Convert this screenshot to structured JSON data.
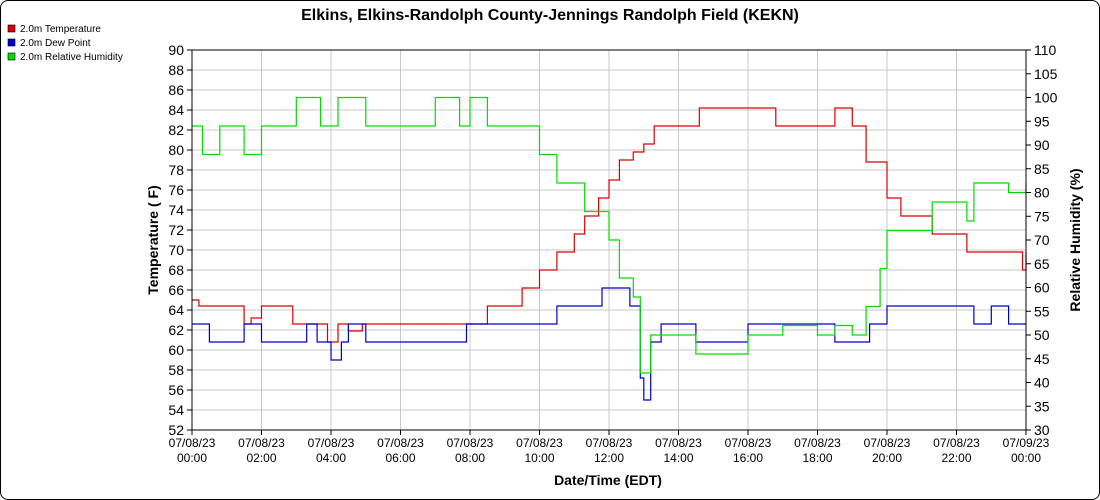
{
  "chart_data": {
    "type": "line",
    "title": "Elkins, Elkins-Randolph County-Jennings Randolph Field (KEKN)",
    "xlabel": "Date/Time (EDT)",
    "ylabel": "Temperature ( F)",
    "y2label": "Relative Humidity (%)",
    "ylim": [
      52,
      90
    ],
    "y2lim": [
      30,
      110
    ],
    "xlim": [
      0,
      24
    ],
    "grid": true,
    "legend_position": "top-left",
    "yticks": [
      "52",
      "54",
      "56",
      "58",
      "60",
      "62",
      "64",
      "66",
      "68",
      "70",
      "72",
      "74",
      "76",
      "78",
      "80",
      "82",
      "84",
      "86",
      "88",
      "90"
    ],
    "y2ticks": [
      "30",
      "35",
      "40",
      "45",
      "50",
      "55",
      "60",
      "65",
      "70",
      "75",
      "80",
      "85",
      "90",
      "95",
      "100",
      "105",
      "110"
    ],
    "xticks": [
      {
        "date": "07/08/23",
        "time": "00:00"
      },
      {
        "date": "07/08/23",
        "time": "02:00"
      },
      {
        "date": "07/08/23",
        "time": "04:00"
      },
      {
        "date": "07/08/23",
        "time": "06:00"
      },
      {
        "date": "07/08/23",
        "time": "08:00"
      },
      {
        "date": "07/08/23",
        "time": "10:00"
      },
      {
        "date": "07/08/23",
        "time": "12:00"
      },
      {
        "date": "07/08/23",
        "time": "14:00"
      },
      {
        "date": "07/08/23",
        "time": "16:00"
      },
      {
        "date": "07/08/23",
        "time": "18:00"
      },
      {
        "date": "07/08/23",
        "time": "20:00"
      },
      {
        "date": "07/08/23",
        "time": "22:00"
      },
      {
        "date": "07/09/23",
        "time": "00:00"
      }
    ],
    "series": [
      {
        "name": "2.0m Temperature",
        "color": "#dd0000",
        "axis": "left",
        "points": [
          [
            0,
            65.0
          ],
          [
            0.2,
            64.4
          ],
          [
            1.3,
            64.4
          ],
          [
            1.5,
            62.6
          ],
          [
            1.7,
            63.2
          ],
          [
            2.0,
            64.4
          ],
          [
            2.7,
            64.4
          ],
          [
            2.9,
            62.6
          ],
          [
            3.5,
            62.6
          ],
          [
            3.9,
            60.8
          ],
          [
            4.2,
            62.6
          ],
          [
            4.5,
            61.9
          ],
          [
            4.9,
            62.6
          ],
          [
            6.0,
            62.6
          ],
          [
            7.0,
            62.6
          ],
          [
            8.0,
            62.6
          ],
          [
            8.5,
            64.4
          ],
          [
            9.5,
            66.2
          ],
          [
            10.0,
            68.0
          ],
          [
            10.5,
            69.8
          ],
          [
            11.0,
            71.6
          ],
          [
            11.3,
            73.4
          ],
          [
            11.7,
            75.2
          ],
          [
            12.0,
            77.0
          ],
          [
            12.3,
            79.0
          ],
          [
            12.7,
            79.8
          ],
          [
            13.0,
            80.6
          ],
          [
            13.3,
            82.4
          ],
          [
            14.0,
            82.4
          ],
          [
            14.6,
            84.2
          ],
          [
            15.5,
            84.2
          ],
          [
            16.0,
            84.2
          ],
          [
            16.8,
            82.4
          ],
          [
            17.5,
            82.4
          ],
          [
            18.5,
            84.2
          ],
          [
            19.0,
            82.4
          ],
          [
            19.4,
            78.8
          ],
          [
            20.0,
            75.2
          ],
          [
            20.4,
            73.4
          ],
          [
            21.0,
            73.4
          ],
          [
            21.3,
            71.6
          ],
          [
            22.0,
            71.6
          ],
          [
            22.3,
            69.8
          ],
          [
            23.5,
            69.8
          ],
          [
            23.9,
            68.0
          ],
          [
            24.0,
            69.8
          ]
        ]
      },
      {
        "name": "2.0m Dew Point",
        "color": "#0000cc",
        "axis": "left",
        "points": [
          [
            0,
            62.6
          ],
          [
            0.5,
            60.8
          ],
          [
            1.3,
            60.8
          ],
          [
            1.5,
            62.6
          ],
          [
            2.0,
            60.8
          ],
          [
            3.0,
            60.8
          ],
          [
            3.3,
            62.6
          ],
          [
            3.6,
            60.8
          ],
          [
            4.0,
            59.0
          ],
          [
            4.3,
            60.8
          ],
          [
            4.5,
            62.6
          ],
          [
            5.0,
            60.8
          ],
          [
            6.0,
            60.8
          ],
          [
            7.5,
            60.8
          ],
          [
            7.9,
            62.6
          ],
          [
            10.0,
            62.6
          ],
          [
            10.5,
            64.4
          ],
          [
            11.5,
            64.4
          ],
          [
            11.8,
            66.2
          ],
          [
            12.3,
            66.2
          ],
          [
            12.6,
            64.4
          ],
          [
            12.9,
            57.2
          ],
          [
            13.0,
            55.0
          ],
          [
            13.2,
            60.8
          ],
          [
            13.5,
            62.6
          ],
          [
            14.0,
            62.6
          ],
          [
            14.5,
            60.8
          ],
          [
            15.5,
            60.8
          ],
          [
            16.0,
            62.6
          ],
          [
            18.0,
            62.6
          ],
          [
            18.5,
            60.8
          ],
          [
            19.5,
            62.6
          ],
          [
            20.0,
            64.4
          ],
          [
            22.0,
            64.4
          ],
          [
            22.5,
            62.6
          ],
          [
            23.0,
            64.4
          ],
          [
            23.5,
            62.6
          ],
          [
            24.0,
            62.6
          ]
        ]
      },
      {
        "name": "2.0m Relative Humidity",
        "color": "#00dd00",
        "axis": "right",
        "points": [
          [
            0,
            94
          ],
          [
            0.3,
            88
          ],
          [
            0.8,
            94
          ],
          [
            1.5,
            88
          ],
          [
            2.0,
            94
          ],
          [
            2.5,
            94
          ],
          [
            3.0,
            100
          ],
          [
            3.7,
            94
          ],
          [
            4.2,
            100
          ],
          [
            5.0,
            94
          ],
          [
            6.5,
            94
          ],
          [
            7.0,
            100
          ],
          [
            7.7,
            94
          ],
          [
            8.0,
            100
          ],
          [
            8.5,
            94
          ],
          [
            9.5,
            94
          ],
          [
            10.0,
            88
          ],
          [
            10.5,
            82
          ],
          [
            11.0,
            82
          ],
          [
            11.3,
            76
          ],
          [
            11.8,
            76
          ],
          [
            12.0,
            70
          ],
          [
            12.3,
            62
          ],
          [
            12.7,
            58
          ],
          [
            12.9,
            42
          ],
          [
            13.2,
            50
          ],
          [
            14.0,
            50
          ],
          [
            14.5,
            46
          ],
          [
            15.5,
            46
          ],
          [
            16.0,
            50
          ],
          [
            17.0,
            52
          ],
          [
            18.0,
            50
          ],
          [
            18.5,
            52
          ],
          [
            19.0,
            50
          ],
          [
            19.4,
            56
          ],
          [
            19.8,
            64
          ],
          [
            20.0,
            72
          ],
          [
            20.5,
            72
          ],
          [
            21.0,
            72
          ],
          [
            21.3,
            78
          ],
          [
            22.0,
            78
          ],
          [
            22.3,
            74
          ],
          [
            22.5,
            82
          ],
          [
            23.0,
            82
          ],
          [
            23.5,
            80
          ],
          [
            24.0,
            82
          ]
        ]
      }
    ]
  }
}
